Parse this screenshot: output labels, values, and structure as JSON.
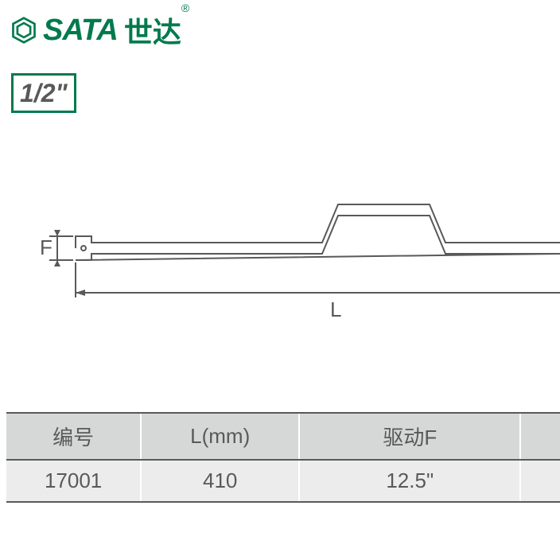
{
  "brand": {
    "en": "SATA",
    "cn": "世达",
    "registered": "®",
    "color": "#007a4d"
  },
  "size_badge": {
    "text": "1/2\"",
    "border_color": "#007a4d",
    "text_color": "#595959"
  },
  "diagram": {
    "label_F": "F",
    "label_L": "L",
    "stroke_color": "#595959",
    "stroke_width": 2,
    "text_color": "#595959",
    "font_size": 26
  },
  "table": {
    "border_color": "#595959",
    "header_bg": "#d6d8d8",
    "row_bg": "#ececec",
    "text_color": "#595959",
    "columns": [
      "编号",
      "L(mm)",
      "驱动F",
      ""
    ],
    "rows": [
      [
        "17001",
        "410",
        "12.5\"",
        ""
      ]
    ]
  }
}
